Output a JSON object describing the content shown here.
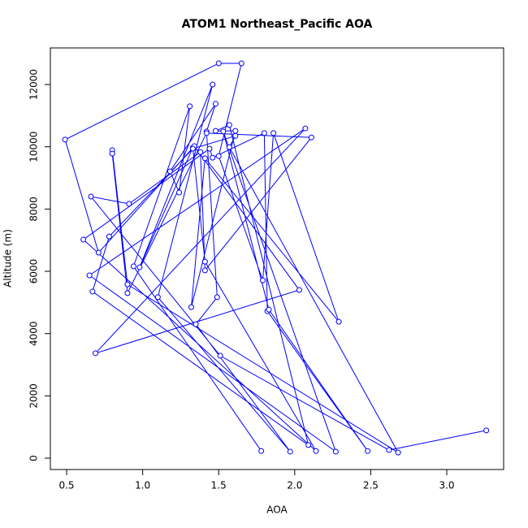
{
  "chart_data": {
    "type": "line",
    "title": "ATOM1 Northeast_Pacific AOA",
    "x_label": "AOA",
    "y_label": "Altitude (m)",
    "series": [
      {
        "color": "#0000ff",
        "x": [
          1.78,
          0.94,
          1.31,
          1.24,
          1.18,
          1.48,
          1.42,
          1.49,
          1.35,
          1.97,
          1.1,
          1.46,
          0.98,
          1.33,
          1.41,
          2.14,
          0.61,
          1.44,
          1.46,
          1.8,
          1.82,
          2.48,
          1.83,
          1.53,
          2.27,
          0.65,
          2.07,
          0.69,
          2.03,
          1.34,
          0.71,
          0.49,
          1.5,
          1.65,
          1.5,
          1.79,
          1.86,
          2.29,
          1.41,
          1.32,
          1.61,
          1.48,
          1.57,
          2.09,
          0.67,
          0.78,
          1.33,
          1.61,
          1.57,
          2.68,
          0.9,
          0.8,
          0.8,
          0.9,
          1.42,
          2.11,
          1.41,
          1.38,
          0.91,
          0.66,
          1.51,
          2.62,
          3.26
        ],
        "values": [
          230,
          6160,
          11300,
          8530,
          9210,
          11380,
          10490,
          5170,
          4300,
          210,
          5170,
          12000,
          6130,
          9970,
          6310,
          230,
          7020,
          9940,
          9650,
          10440,
          4720,
          230,
          4770,
          10490,
          210,
          5870,
          10590,
          3370,
          5400,
          10020,
          6600,
          10230,
          12680,
          12680,
          9700,
          5710,
          10440,
          4380,
          9630,
          4850,
          10510,
          10510,
          10700,
          420,
          5350,
          7120,
          9940,
          10350,
          9990,
          180,
          5580,
          9890,
          9780,
          5300,
          10440,
          10300,
          6030,
          9830,
          8170,
          8400,
          3290,
          260,
          890
        ]
      }
    ],
    "markers": true,
    "xlim": [
      0.393,
      3.374
    ],
    "ylim": [
      -365,
      13175
    ],
    "xticks": [
      0.5,
      {
        "value": 1,
        "label": "1.0"
      },
      1.5,
      {
        "value": 2,
        "label": "2.0"
      },
      2.5,
      {
        "value": 3,
        "label": "3.0"
      }
    ],
    "yticks": [
      0,
      2000,
      4000,
      6000,
      8000,
      10000,
      12000
    ]
  }
}
